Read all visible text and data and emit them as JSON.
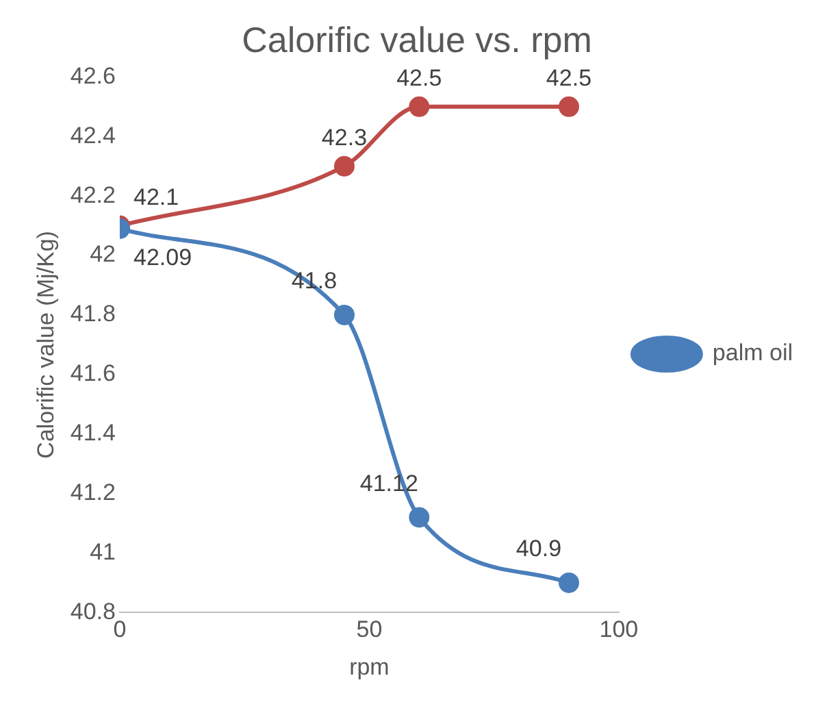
{
  "chart_data": {
    "type": "line",
    "title": "Calorific value vs. rpm",
    "xlabel": "rpm",
    "ylabel": "Calorific value (Mj/Kg)",
    "x": [
      0,
      45,
      60,
      90
    ],
    "series": [
      {
        "name": "palm oil",
        "color": "#4a7ebb",
        "values": [
          42.09,
          41.8,
          41.12,
          40.9
        ]
      },
      {
        "color": "#be4b48",
        "values": [
          42.1,
          42.3,
          42.5,
          42.5
        ]
      }
    ],
    "xlim": [
      0,
      100
    ],
    "xticks": [
      0,
      50,
      100
    ],
    "ylim": [
      40.8,
      42.6
    ],
    "yticks": [
      40.8,
      41,
      41.2,
      41.4,
      41.6,
      41.8,
      42,
      42.2,
      42.4,
      42.6
    ],
    "grid": false,
    "legend": "right",
    "marker": "circle",
    "line_style": "solid",
    "data_labels": true
  }
}
